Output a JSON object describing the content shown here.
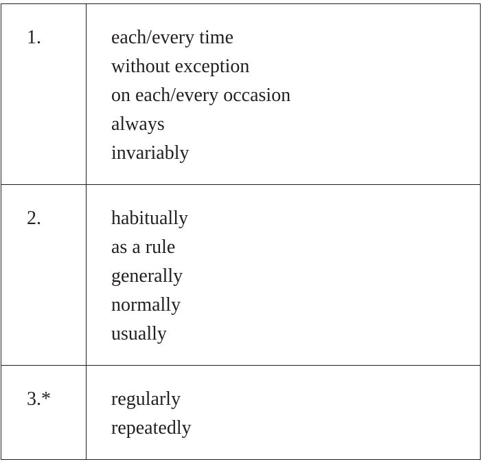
{
  "rows": [
    {
      "number": "1.",
      "terms": [
        "each/every time",
        "without exception",
        "on each/every occasion",
        "always",
        "invariably"
      ]
    },
    {
      "number": "2.",
      "terms": [
        "habitually",
        "as a rule",
        "generally",
        "normally",
        "usually"
      ]
    },
    {
      "number": "3.*",
      "terms": [
        "regularly",
        "repeatedly"
      ]
    }
  ]
}
